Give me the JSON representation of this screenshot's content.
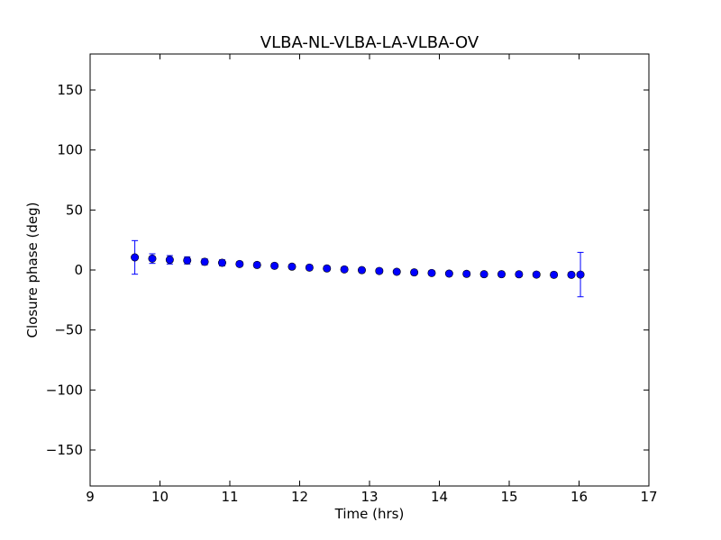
{
  "chart_data": {
    "type": "scatter",
    "title": "VLBA-NL-VLBA-LA-VLBA-OV",
    "xlabel": "Time (hrs)",
    "ylabel": "Closure phase (deg)",
    "xlim": [
      9,
      17
    ],
    "ylim": [
      -180,
      180
    ],
    "xticks": [
      9,
      10,
      11,
      12,
      13,
      14,
      15,
      16,
      17
    ],
    "yticks": [
      -150,
      -100,
      -50,
      0,
      50,
      100,
      150
    ],
    "xtick_labels": [
      "9",
      "10",
      "11",
      "12",
      "13",
      "14",
      "15",
      "16",
      "17"
    ],
    "ytick_labels": [
      "−150",
      "−100",
      "−50",
      "0",
      "50",
      "100",
      "150"
    ],
    "grid": false,
    "marker_color": "#0000ff",
    "series": [
      {
        "points": [
          {
            "x": 9.64,
            "y": 10.5,
            "err": 14.0
          },
          {
            "x": 9.89,
            "y": 9.5,
            "err": 4.0
          },
          {
            "x": 10.14,
            "y": 8.5,
            "err": 3.5
          },
          {
            "x": 10.39,
            "y": 8.0,
            "err": 3.0
          },
          {
            "x": 10.64,
            "y": 6.8,
            "err": 2.5
          },
          {
            "x": 10.89,
            "y": 6.0,
            "err": 2.5
          },
          {
            "x": 11.14,
            "y": 5.0,
            "err": 2.0
          },
          {
            "x": 11.39,
            "y": 4.2,
            "err": 2.0
          },
          {
            "x": 11.64,
            "y": 3.5,
            "err": 2.0
          },
          {
            "x": 11.89,
            "y": 2.8,
            "err": 2.0
          },
          {
            "x": 12.14,
            "y": 2.0,
            "err": 2.0
          },
          {
            "x": 12.39,
            "y": 1.3,
            "err": 2.0
          },
          {
            "x": 12.64,
            "y": 0.5,
            "err": 2.0
          },
          {
            "x": 12.89,
            "y": -0.1,
            "err": 2.0
          },
          {
            "x": 13.14,
            "y": -0.8,
            "err": 2.0
          },
          {
            "x": 13.39,
            "y": -1.5,
            "err": 2.0
          },
          {
            "x": 13.64,
            "y": -2.0,
            "err": 2.0
          },
          {
            "x": 13.89,
            "y": -2.5,
            "err": 2.0
          },
          {
            "x": 14.14,
            "y": -3.0,
            "err": 2.0
          },
          {
            "x": 14.39,
            "y": -3.2,
            "err": 2.0
          },
          {
            "x": 14.64,
            "y": -3.5,
            "err": 2.0
          },
          {
            "x": 14.89,
            "y": -3.5,
            "err": 2.0
          },
          {
            "x": 15.14,
            "y": -3.6,
            "err": 2.0
          },
          {
            "x": 15.39,
            "y": -3.8,
            "err": 2.0
          },
          {
            "x": 15.64,
            "y": -4.0,
            "err": 2.0
          },
          {
            "x": 15.89,
            "y": -4.0,
            "err": 2.0
          },
          {
            "x": 16.02,
            "y": -3.8,
            "err": 18.5
          }
        ]
      }
    ]
  }
}
